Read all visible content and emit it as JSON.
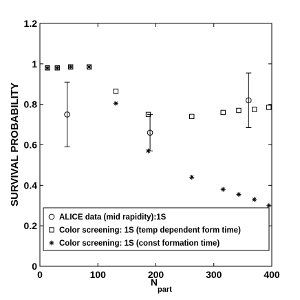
{
  "chart_data": {
    "type": "scatter",
    "xlabel": "N",
    "xlabel_sub": "part",
    "ylabel": "SURVIVAL PROBABILITY",
    "xlim": [
      0,
      400
    ],
    "ylim": [
      0,
      1.2
    ],
    "xticks": [
      "0",
      "100",
      "200",
      "300",
      "400"
    ],
    "yticks": [
      "0",
      "0.2",
      "0.4",
      "0.6",
      "0.8",
      "1",
      "1.2"
    ],
    "grid": false,
    "legend_position": "bottom",
    "series": [
      {
        "name": "ALICE data (mid rapidity):1S",
        "marker": "circle",
        "points": [
          {
            "x": 47,
            "y": 0.75,
            "err": 0.16
          },
          {
            "x": 190,
            "y": 0.66,
            "err": 0.09
          },
          {
            "x": 360,
            "y": 0.82,
            "err": 0.135
          }
        ]
      },
      {
        "name": "Color screening: 1S (temp dependent form time)",
        "marker": "square",
        "points": [
          {
            "x": 13,
            "y": 0.98
          },
          {
            "x": 30,
            "y": 0.98
          },
          {
            "x": 53,
            "y": 0.985
          },
          {
            "x": 85,
            "y": 0.985
          },
          {
            "x": 131,
            "y": 0.865
          },
          {
            "x": 187,
            "y": 0.75
          },
          {
            "x": 262,
            "y": 0.74
          },
          {
            "x": 316,
            "y": 0.76
          },
          {
            "x": 343,
            "y": 0.77
          },
          {
            "x": 370,
            "y": 0.775
          },
          {
            "x": 395,
            "y": 0.785
          }
        ]
      },
      {
        "name": "Color screening: 1S (const formation time)",
        "marker": "star",
        "points": [
          {
            "x": 13,
            "y": 0.98
          },
          {
            "x": 30,
            "y": 0.98
          },
          {
            "x": 53,
            "y": 0.985
          },
          {
            "x": 85,
            "y": 0.985
          },
          {
            "x": 131,
            "y": 0.805
          },
          {
            "x": 187,
            "y": 0.57
          },
          {
            "x": 262,
            "y": 0.44
          },
          {
            "x": 316,
            "y": 0.38
          },
          {
            "x": 343,
            "y": 0.355
          },
          {
            "x": 370,
            "y": 0.33
          },
          {
            "x": 395,
            "y": 0.3
          }
        ]
      }
    ]
  }
}
